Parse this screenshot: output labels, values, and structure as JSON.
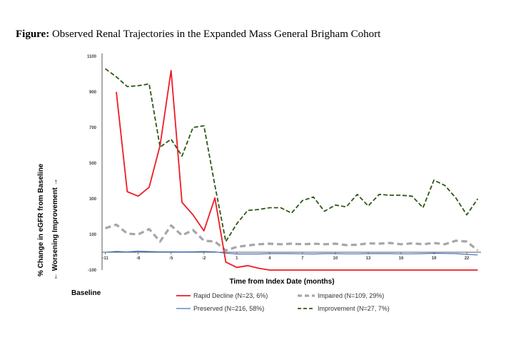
{
  "figure": {
    "title_bold": "Figure:",
    "title_rest": " Observed Renal Trajectories in the Expanded Mass General Brigham Cohort"
  },
  "chart_data": {
    "type": "line",
    "title": "Observed Renal Trajectories in the Expanded Mass General Brigham Cohort",
    "xlabel": "Time from Index Date (months)",
    "ylabel_lines": [
      "% Change in eGFR from Baseline",
      "← Worsening          Improvement →"
    ],
    "baseline_label": "Baseline",
    "x": [
      -11,
      -10,
      -9,
      -8,
      -7,
      -6,
      -5,
      -4,
      -3,
      -2,
      -1,
      0,
      1,
      2,
      3,
      4,
      5,
      6,
      7,
      8,
      9,
      10,
      11,
      12,
      13,
      14,
      15,
      16,
      17,
      18,
      19,
      20,
      21,
      22,
      23
    ],
    "xlim": [
      -11.3,
      23.3
    ],
    "ylim": [
      -100,
      1100
    ],
    "x_ticks": [
      -11,
      -8,
      -5,
      -2,
      1,
      4,
      7,
      10,
      13,
      16,
      19,
      22
    ],
    "y_ticks": [
      -100,
      100,
      300,
      500,
      700,
      900,
      1100
    ],
    "series": [
      {
        "name": "Rapid Decline (N=23, 6%)",
        "color": "#ee1c25",
        "dash": "solid",
        "width": 1.8,
        "values": [
          null,
          900,
          340,
          315,
          365,
          600,
          1020,
          280,
          210,
          120,
          305,
          -55,
          -85,
          -75,
          -90,
          -100,
          -100,
          -100,
          -100,
          -100,
          -100,
          -100,
          -100,
          -100,
          -100,
          -100,
          -100,
          -100,
          -100,
          -100,
          -100,
          -100,
          -100,
          -100,
          -100
        ]
      },
      {
        "name": "Impaired (N=109, 29%)",
        "color": "#a6a6a6",
        "dash": "8,5",
        "width": 3.2,
        "values": [
          135,
          155,
          105,
          100,
          130,
          60,
          150,
          95,
          125,
          65,
          60,
          10,
          30,
          38,
          45,
          48,
          45,
          48,
          45,
          48,
          45,
          48,
          40,
          42,
          50,
          48,
          52,
          45,
          50,
          45,
          52,
          45,
          65,
          60,
          10
        ]
      },
      {
        "name": "Preserved (N=216, 58%)",
        "color": "#4472c4",
        "dash": "solid",
        "width": 1.2,
        "values": [
          0,
          5,
          2,
          6,
          4,
          3,
          3,
          2,
          3,
          4,
          2,
          -5,
          -10,
          -10,
          -10,
          -8,
          -8,
          -8,
          -9,
          -10,
          -8,
          -8,
          -9,
          -9,
          -8,
          -8,
          -8,
          -9,
          -9,
          -8,
          -6,
          -7,
          -8,
          -12,
          -15
        ]
      },
      {
        "name": "Improvement (N=27, 7%)",
        "color": "#2e5815",
        "dash": "6,3",
        "width": 1.8,
        "values": [
          1030,
          985,
          930,
          935,
          945,
          590,
          635,
          540,
          700,
          710,
          375,
          60,
          160,
          235,
          240,
          250,
          250,
          220,
          290,
          310,
          230,
          265,
          255,
          325,
          260,
          325,
          320,
          320,
          315,
          250,
          405,
          375,
          305,
          210,
          300
        ]
      }
    ]
  },
  "legend": {
    "items": [
      {
        "label": "Rapid Decline (N=23, 6%)"
      },
      {
        "label": "Impaired (N=109, 29%)"
      },
      {
        "label": "Preserved (N=216, 58%)"
      },
      {
        "label": "Improvement (N=27, 7%)"
      }
    ]
  }
}
